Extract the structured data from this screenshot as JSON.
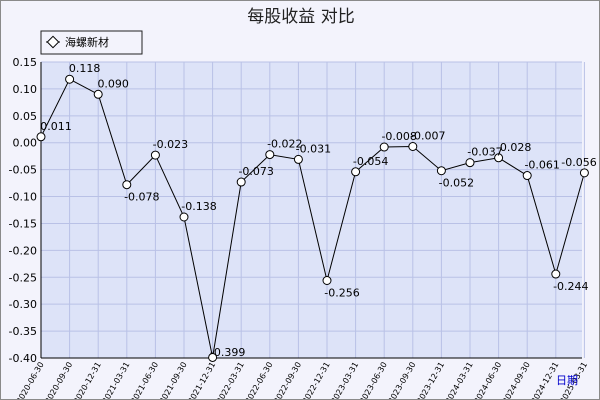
{
  "chart_data": {
    "type": "line",
    "title": "每股收益  对比",
    "xlabel": "日期",
    "ylabel": "",
    "ylim": [
      -0.4,
      0.15
    ],
    "y_ticks": [
      "0.15",
      "0.10",
      "0.05",
      "0.00",
      "-0.05",
      "-0.10",
      "-0.15",
      "-0.20",
      "-0.25",
      "-0.30",
      "-0.35",
      "-0.40"
    ],
    "y_tick_values": [
      0.15,
      0.1,
      0.05,
      0.0,
      -0.05,
      -0.1,
      -0.15,
      -0.2,
      -0.25,
      -0.3,
      -0.35,
      -0.4
    ],
    "grid": true,
    "legend_position": "top-left",
    "categories": [
      "2020-06-30",
      "2020-09-30",
      "2020-12-31",
      "2021-03-31",
      "2021-06-30",
      "2021-09-30",
      "2021-12-31",
      "2022-03-31",
      "2022-06-30",
      "2022-09-30",
      "2022-12-31",
      "2023-03-31",
      "2023-06-30",
      "2023-09-30",
      "2023-12-31",
      "2024-03-31",
      "2024-06-30",
      "2024-09-30",
      "2024-12-31",
      "2025-03-31"
    ],
    "series": [
      {
        "name": "海螺新材",
        "values": [
          0.011,
          0.118,
          0.09,
          -0.078,
          -0.023,
          -0.138,
          -0.399,
          -0.073,
          -0.022,
          -0.031,
          -0.256,
          -0.054,
          -0.008,
          -0.007,
          -0.052,
          -0.037,
          -0.028,
          -0.061,
          -0.244,
          -0.056
        ],
        "labels": [
          "0.011",
          "0.118",
          "0.090",
          "-0.078",
          "-0.023",
          "-0.138",
          "-0.399",
          "-0.073",
          "-0.022",
          "-0.031",
          "-0.256",
          "-0.054",
          "-0.008",
          "-0.007",
          "-0.052",
          "-0.037",
          "-0.028",
          "-0.061",
          "-0.244",
          "-0.056"
        ]
      }
    ]
  },
  "colors": {
    "plot_bg": "#dde3f8",
    "grid": "#b9c1e6",
    "line": "#000000",
    "marker_fill": "#ffffff",
    "axis_label_accent": "#0000cc"
  }
}
